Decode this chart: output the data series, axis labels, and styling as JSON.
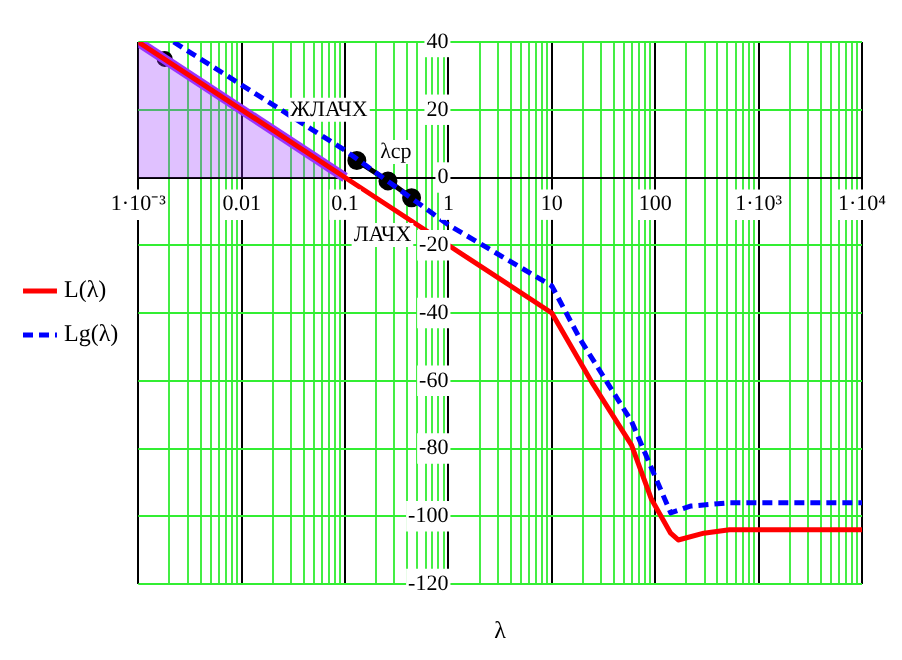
{
  "chart_data": {
    "type": "line",
    "xlabel": "λ",
    "log": "x",
    "grid": true,
    "legend": "left",
    "xlim": [
      0.001,
      10000
    ],
    "ylim": [
      -120,
      40
    ],
    "xticks": [
      {
        "value": 0.001,
        "label": "1·10⁻³"
      },
      {
        "value": 0.002,
        "label": null
      },
      {
        "value": 0.003,
        "label": null
      },
      {
        "value": 0.004,
        "label": null
      },
      {
        "value": 0.005,
        "label": null
      },
      {
        "value": 0.006,
        "label": null
      },
      {
        "value": 0.007,
        "label": null
      },
      {
        "value": 0.008,
        "label": null
      },
      {
        "value": 0.009,
        "label": null
      },
      {
        "value": 0.01,
        "label": "0.01"
      },
      {
        "value": 0.02,
        "label": null
      },
      {
        "value": 0.03,
        "label": null
      },
      {
        "value": 0.04,
        "label": null
      },
      {
        "value": 0.05,
        "label": null
      },
      {
        "value": 0.06,
        "label": null
      },
      {
        "value": 0.07,
        "label": null
      },
      {
        "value": 0.08,
        "label": null
      },
      {
        "value": 0.09,
        "label": null
      },
      {
        "value": 0.1,
        "label": "0.1"
      },
      {
        "value": 0.2,
        "label": null
      },
      {
        "value": 0.3,
        "label": null
      },
      {
        "value": 0.4,
        "label": null
      },
      {
        "value": 0.5,
        "label": null
      },
      {
        "value": 0.6,
        "label": null
      },
      {
        "value": 0.7,
        "label": null
      },
      {
        "value": 0.8,
        "label": null
      },
      {
        "value": 0.9,
        "label": null
      },
      {
        "value": 1,
        "label": "1"
      },
      {
        "value": 2,
        "label": null
      },
      {
        "value": 3,
        "label": null
      },
      {
        "value": 4,
        "label": null
      },
      {
        "value": 5,
        "label": null
      },
      {
        "value": 6,
        "label": null
      },
      {
        "value": 7,
        "label": null
      },
      {
        "value": 8,
        "label": null
      },
      {
        "value": 9,
        "label": null
      },
      {
        "value": 10,
        "label": "10"
      },
      {
        "value": 20,
        "label": null
      },
      {
        "value": 30,
        "label": null
      },
      {
        "value": 40,
        "label": null
      },
      {
        "value": 50,
        "label": null
      },
      {
        "value": 60,
        "label": null
      },
      {
        "value": 70,
        "label": null
      },
      {
        "value": 80,
        "label": null
      },
      {
        "value": 90,
        "label": null
      },
      {
        "value": 100,
        "label": "100"
      },
      {
        "value": 200,
        "label": null
      },
      {
        "value": 300,
        "label": null
      },
      {
        "value": 400,
        "label": null
      },
      {
        "value": 500,
        "label": null
      },
      {
        "value": 600,
        "label": null
      },
      {
        "value": 700,
        "label": null
      },
      {
        "value": 800,
        "label": null
      },
      {
        "value": 900,
        "label": null
      },
      {
        "value": 1000,
        "label": "1·10³"
      },
      {
        "value": 2000,
        "label": null
      },
      {
        "value": 3000,
        "label": null
      },
      {
        "value": 4000,
        "label": null
      },
      {
        "value": 5000,
        "label": null
      },
      {
        "value": 6000,
        "label": null
      },
      {
        "value": 7000,
        "label": null
      },
      {
        "value": 8000,
        "label": null
      },
      {
        "value": 9000,
        "label": null
      },
      {
        "value": 10000,
        "label": "1·10⁴"
      }
    ],
    "yticks": [
      -120,
      -100,
      -80,
      -60,
      -40,
      -20,
      0,
      20,
      40
    ],
    "series": [
      {
        "name": "L(λ)",
        "color": "#ff0000",
        "x": [
          0.001,
          0.1,
          1,
          10,
          25,
          59,
          92,
          141,
          167,
          295,
          522,
          10000
        ],
        "values": [
          40,
          0,
          -20,
          -40,
          -61,
          -79,
          -95,
          -105,
          -107,
          -105,
          -104,
          -104
        ]
      },
      {
        "type": "area",
        "color": "#9933ff",
        "x": [
          0.001,
          0.1
        ],
        "values": [
          40,
          0
        ]
      },
      {
        "name": "Lg(λ)",
        "color": "#0000ff",
        "line_style": "dashed",
        "x": [
          0.0022,
          0.1,
          1,
          10,
          19,
          59,
          141,
          219,
          522,
          10000
        ],
        "values": [
          40,
          8,
          -14,
          -32,
          -48,
          -72,
          -99,
          -97,
          -96,
          -96
        ]
      },
      {
        "color": "#000000",
        "marker": "circle",
        "x": [
          0.13,
          0.26,
          0.44
        ],
        "values": [
          5,
          -1,
          -6
        ]
      },
      {
        "type": "scatter",
        "color": "#000000",
        "marker": "circle",
        "x": [
          0.0018
        ],
        "values": [
          35
        ]
      }
    ],
    "annotations": [
      "ЖЛАЧХ",
      "λср",
      "ЛАЧХ"
    ]
  }
}
